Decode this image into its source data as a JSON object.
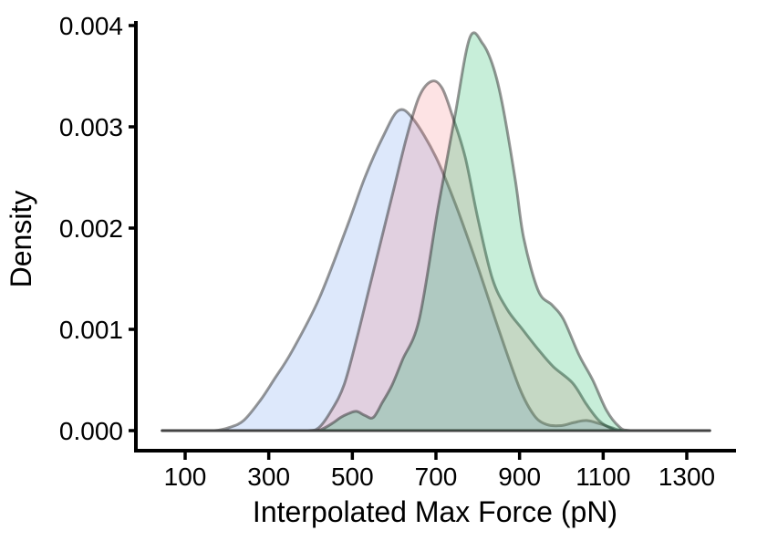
{
  "figure": {
    "background": "#ffffff"
  },
  "chart_data": {
    "type": "area",
    "subtype": "overlapping-density",
    "title": "",
    "xlabel": "Interpolated Max Force (pN)",
    "ylabel": "Density",
    "xlim": [
      45,
      1355
    ],
    "ylim": [
      0,
      0.004
    ],
    "grid": false,
    "legend": "none",
    "axis_color": "#000000",
    "outline_color": "rgba(38,38,38,0.48)",
    "x_tick_values": [
      100,
      300,
      500,
      700,
      900,
      1100,
      1300
    ],
    "x_tick_labels": [
      "100",
      "300",
      "500",
      "700",
      "900",
      "1100",
      "1300"
    ],
    "y_tick_values": [
      0,
      0.001,
      0.002,
      0.003,
      0.004
    ],
    "y_tick_labels": [
      "0.000",
      "0.001",
      "0.002",
      "0.003",
      "0.004"
    ],
    "series": [
      {
        "name": "blue-density",
        "fill": "rgba(100,150,235,0.22)",
        "peak_x": 610,
        "peak_density": 0.0031,
        "points": [
          [
            45,
            0
          ],
          [
            110,
            0
          ],
          [
            170,
            0
          ],
          [
            205,
            3e-05
          ],
          [
            240,
            0.0001
          ],
          [
            280,
            0.0003
          ],
          [
            312,
            0.0005
          ],
          [
            355,
            0.00078
          ],
          [
            420,
            0.0013
          ],
          [
            486,
            0.002
          ],
          [
            530,
            0.0025
          ],
          [
            573,
            0.0029
          ],
          [
            610,
            0.00316
          ],
          [
            645,
            0.00308
          ],
          [
            700,
            0.0027
          ],
          [
            750,
            0.0022
          ],
          [
            800,
            0.00162
          ],
          [
            850,
            0.001
          ],
          [
            900,
            0.00042
          ],
          [
            935,
            0.00015
          ],
          [
            965,
            6e-05
          ],
          [
            1000,
            5e-05
          ],
          [
            1030,
            8e-05
          ],
          [
            1060,
            0.0001
          ],
          [
            1090,
            7e-05
          ],
          [
            1120,
            3e-05
          ],
          [
            1150,
            0
          ],
          [
            1250,
            0
          ],
          [
            1355,
            0
          ]
        ]
      },
      {
        "name": "pink-density",
        "fill": "rgba(246,115,120,0.20)",
        "peak_x": 690,
        "peak_density": 0.0034,
        "points": [
          [
            45,
            0
          ],
          [
            160,
            0
          ],
          [
            280,
            0
          ],
          [
            390,
            0
          ],
          [
            420,
            3e-05
          ],
          [
            450,
            0.0002
          ],
          [
            480,
            0.00045
          ],
          [
            510,
            0.0009
          ],
          [
            540,
            0.0014
          ],
          [
            570,
            0.0019
          ],
          [
            600,
            0.0024
          ],
          [
            630,
            0.0029
          ],
          [
            660,
            0.0033
          ],
          [
            690,
            0.00345
          ],
          [
            715,
            0.00338
          ],
          [
            740,
            0.0031
          ],
          [
            770,
            0.0027
          ],
          [
            800,
            0.0021
          ],
          [
            835,
            0.0015
          ],
          [
            870,
            0.0012
          ],
          [
            907,
            0.001
          ],
          [
            945,
            0.0008
          ],
          [
            981,
            0.00063
          ],
          [
            1027,
            0.00047
          ],
          [
            1060,
            0.00026
          ],
          [
            1090,
            0.0001
          ],
          [
            1120,
            2e-05
          ],
          [
            1145,
            0
          ],
          [
            1250,
            0
          ],
          [
            1355,
            0
          ]
        ]
      },
      {
        "name": "green-density",
        "fill": "rgba(0,178,80,0.22)",
        "peak_x": 780,
        "peak_density": 0.0038,
        "points": [
          [
            45,
            0
          ],
          [
            160,
            0
          ],
          [
            290,
            0
          ],
          [
            405,
            0
          ],
          [
            430,
            2e-05
          ],
          [
            455,
            8e-05
          ],
          [
            472,
            0.00013
          ],
          [
            492,
            0.00017
          ],
          [
            510,
            0.00019
          ],
          [
            530,
            0.00015
          ],
          [
            550,
            0.00013
          ],
          [
            572,
            0.00028
          ],
          [
            595,
            0.00045
          ],
          [
            620,
            0.0007
          ],
          [
            660,
            0.0011
          ],
          [
            705,
            0.0022
          ],
          [
            745,
            0.0031
          ],
          [
            781,
            0.00388
          ],
          [
            812,
            0.00382
          ],
          [
            838,
            0.00358
          ],
          [
            860,
            0.0032
          ],
          [
            890,
            0.00247
          ],
          [
            910,
            0.0019
          ],
          [
            945,
            0.00138
          ],
          [
            978,
            0.00124
          ],
          [
            1005,
            0.0011
          ],
          [
            1042,
            0.00075
          ],
          [
            1075,
            0.0005
          ],
          [
            1108,
            0.0002
          ],
          [
            1138,
            4e-05
          ],
          [
            1165,
            0
          ],
          [
            1260,
            0
          ],
          [
            1355,
            0
          ]
        ]
      }
    ]
  }
}
